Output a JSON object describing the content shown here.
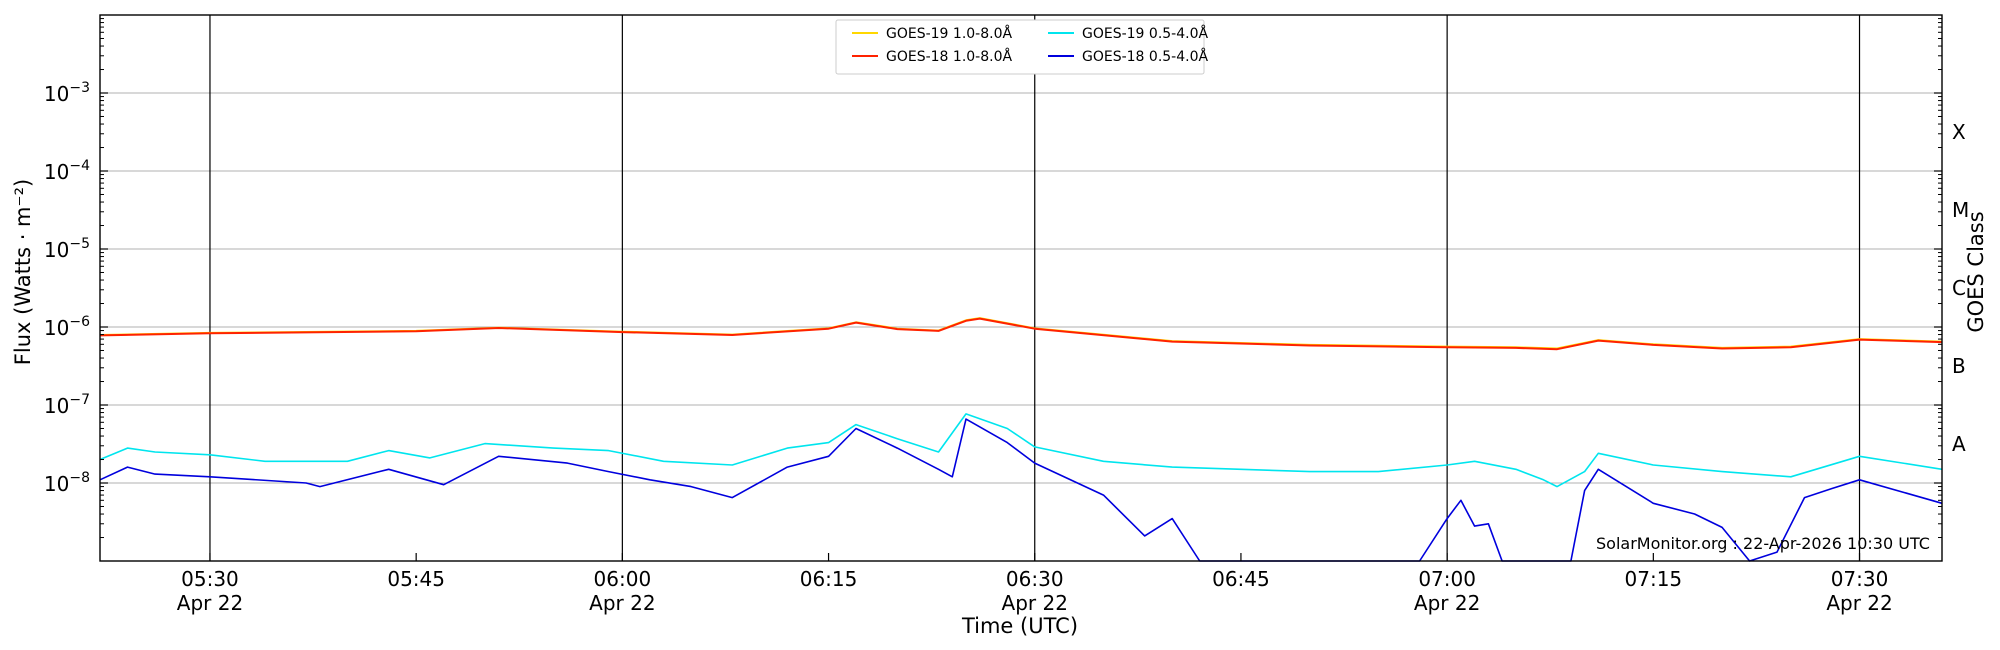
{
  "chart_data": {
    "type": "line",
    "title": "",
    "xlabel": "Time (UTC)",
    "ylabel": "Flux (Watts · m⁻²)",
    "ylabel_right": "GOES Class",
    "y_scale": "log",
    "ylim": [
      1e-09,
      0.01
    ],
    "xlim": [
      "05:22",
      "07:36"
    ],
    "grid": {
      "horizontal": true,
      "vertical_at_major_ticks": true
    },
    "legend_position": "top-center",
    "x_ticks": [
      {
        "time": "05:30",
        "label": "05:30",
        "sublabel": "Apr 22",
        "gridline": true
      },
      {
        "time": "05:45",
        "label": "05:45",
        "sublabel": "",
        "gridline": false
      },
      {
        "time": "06:00",
        "label": "06:00",
        "sublabel": "Apr 22",
        "gridline": true
      },
      {
        "time": "06:15",
        "label": "06:15",
        "sublabel": "",
        "gridline": false
      },
      {
        "time": "06:30",
        "label": "06:30",
        "sublabel": "Apr 22",
        "gridline": true
      },
      {
        "time": "06:45",
        "label": "06:45",
        "sublabel": "",
        "gridline": false
      },
      {
        "time": "07:00",
        "label": "07:00",
        "sublabel": "Apr 22",
        "gridline": true
      },
      {
        "time": "07:15",
        "label": "07:15",
        "sublabel": "",
        "gridline": false
      },
      {
        "time": "07:30",
        "label": "07:30",
        "sublabel": "Apr 22",
        "gridline": true
      }
    ],
    "y_ticks": [
      {
        "exp": -8,
        "label": "10"
      },
      {
        "exp": -7,
        "label": "10"
      },
      {
        "exp": -6,
        "label": "10"
      },
      {
        "exp": -5,
        "label": "10"
      },
      {
        "exp": -4,
        "label": "10"
      },
      {
        "exp": -3,
        "label": "10"
      }
    ],
    "goes_classes": [
      {
        "label": "A",
        "exp": -7.5
      },
      {
        "label": "B",
        "exp": -6.5
      },
      {
        "label": "C",
        "exp": -5.5
      },
      {
        "label": "M",
        "exp": -4.5
      },
      {
        "label": "X",
        "exp": -3.5
      }
    ],
    "series": [
      {
        "name": "GOES-19 1.0-8.0Å",
        "color": "#ffd700",
        "points": [
          [
            "05:22",
            7.9e-07
          ],
          [
            "05:30",
            8.4e-07
          ],
          [
            "05:45",
            8.9e-07
          ],
          [
            "05:51",
            9.8e-07
          ],
          [
            "06:00",
            8.7e-07
          ],
          [
            "06:08",
            8e-07
          ],
          [
            "06:15",
            9.6e-07
          ],
          [
            "06:17",
            1.15e-06
          ],
          [
            "06:20",
            9.5e-07
          ],
          [
            "06:23",
            9e-07
          ],
          [
            "06:25",
            1.22e-06
          ],
          [
            "06:26",
            1.3e-06
          ],
          [
            "06:30",
            9.6e-07
          ],
          [
            "06:40",
            6.6e-07
          ],
          [
            "06:50",
            5.9e-07
          ],
          [
            "07:00",
            5.6e-07
          ],
          [
            "07:05",
            5.5e-07
          ],
          [
            "07:08",
            5.3e-07
          ],
          [
            "07:11",
            6.8e-07
          ],
          [
            "07:15",
            6e-07
          ],
          [
            "07:20",
            5.4e-07
          ],
          [
            "07:25",
            5.6e-07
          ],
          [
            "07:30",
            7e-07
          ],
          [
            "07:36",
            6.5e-07
          ]
        ]
      },
      {
        "name": "GOES-18 1.0-8.0Å",
        "color": "#ff2200",
        "points": [
          [
            "05:22",
            7.8e-07
          ],
          [
            "05:30",
            8.3e-07
          ],
          [
            "05:45",
            8.8e-07
          ],
          [
            "05:51",
            9.7e-07
          ],
          [
            "06:00",
            8.6e-07
          ],
          [
            "06:08",
            7.9e-07
          ],
          [
            "06:15",
            9.5e-07
          ],
          [
            "06:17",
            1.14e-06
          ],
          [
            "06:20",
            9.4e-07
          ],
          [
            "06:23",
            8.9e-07
          ],
          [
            "06:25",
            1.2e-06
          ],
          [
            "06:26",
            1.28e-06
          ],
          [
            "06:30",
            9.5e-07
          ],
          [
            "06:40",
            6.5e-07
          ],
          [
            "06:50",
            5.8e-07
          ],
          [
            "07:00",
            5.5e-07
          ],
          [
            "07:05",
            5.4e-07
          ],
          [
            "07:08",
            5.2e-07
          ],
          [
            "07:11",
            6.7e-07
          ],
          [
            "07:15",
            5.9e-07
          ],
          [
            "07:20",
            5.3e-07
          ],
          [
            "07:25",
            5.5e-07
          ],
          [
            "07:30",
            6.9e-07
          ],
          [
            "07:36",
            6.4e-07
          ]
        ]
      },
      {
        "name": "GOES-19 0.5-4.0Å",
        "color": "#00e5ee",
        "points": [
          [
            "05:22",
            2e-08
          ],
          [
            "05:24",
            2.8e-08
          ],
          [
            "05:26",
            2.5e-08
          ],
          [
            "05:30",
            2.3e-08
          ],
          [
            "05:34",
            1.9e-08
          ],
          [
            "05:40",
            1.9e-08
          ],
          [
            "05:43",
            2.6e-08
          ],
          [
            "05:46",
            2.1e-08
          ],
          [
            "05:50",
            3.2e-08
          ],
          [
            "05:55",
            2.8e-08
          ],
          [
            "05:59",
            2.6e-08
          ],
          [
            "06:03",
            1.9e-08
          ],
          [
            "06:08",
            1.7e-08
          ],
          [
            "06:12",
            2.8e-08
          ],
          [
            "06:15",
            3.3e-08
          ],
          [
            "06:17",
            5.6e-08
          ],
          [
            "06:20",
            3.7e-08
          ],
          [
            "06:23",
            2.5e-08
          ],
          [
            "06:25",
            7.7e-08
          ],
          [
            "06:28",
            5e-08
          ],
          [
            "06:30",
            2.9e-08
          ],
          [
            "06:35",
            1.9e-08
          ],
          [
            "06:40",
            1.6e-08
          ],
          [
            "06:45",
            1.5e-08
          ],
          [
            "06:50",
            1.4e-08
          ],
          [
            "06:55",
            1.4e-08
          ],
          [
            "07:00",
            1.7e-08
          ],
          [
            "07:02",
            1.9e-08
          ],
          [
            "07:05",
            1.5e-08
          ],
          [
            "07:07",
            1.1e-08
          ],
          [
            "07:08",
            9e-09
          ],
          [
            "07:10",
            1.4e-08
          ],
          [
            "07:11",
            2.4e-08
          ],
          [
            "07:15",
            1.7e-08
          ],
          [
            "07:20",
            1.4e-08
          ],
          [
            "07:25",
            1.2e-08
          ],
          [
            "07:30",
            2.2e-08
          ],
          [
            "07:36",
            1.5e-08
          ]
        ]
      },
      {
        "name": "GOES-18 0.5-4.0Å",
        "color": "#0000dd",
        "points": [
          [
            "05:22",
            1.1e-08
          ],
          [
            "05:24",
            1.6e-08
          ],
          [
            "05:26",
            1.3e-08
          ],
          [
            "05:30",
            1.2e-08
          ],
          [
            "05:37",
            1e-08
          ],
          [
            "05:38",
            9e-09
          ],
          [
            "05:43",
            1.5e-08
          ],
          [
            "05:47",
            9.5e-09
          ],
          [
            "05:51",
            2.2e-08
          ],
          [
            "05:56",
            1.8e-08
          ],
          [
            "05:59",
            1.4e-08
          ],
          [
            "06:02",
            1.1e-08
          ],
          [
            "06:05",
            9e-09
          ],
          [
            "06:08",
            6.5e-09
          ],
          [
            "06:12",
            1.6e-08
          ],
          [
            "06:15",
            2.2e-08
          ],
          [
            "06:17",
            5e-08
          ],
          [
            "06:20",
            2.8e-08
          ],
          [
            "06:23",
            1.5e-08
          ],
          [
            "06:24",
            1.2e-08
          ],
          [
            "06:25",
            6.6e-08
          ],
          [
            "06:28",
            3.3e-08
          ],
          [
            "06:30",
            1.8e-08
          ],
          [
            "06:35",
            7e-09
          ],
          [
            "06:38",
            2.1e-09
          ],
          [
            "06:40",
            3.5e-09
          ],
          [
            "06:42",
            1e-09
          ],
          [
            "06:44",
            1e-09
          ],
          [
            "06:58",
            1e-09
          ],
          [
            "07:00",
            3.5e-09
          ],
          [
            "07:01",
            6e-09
          ],
          [
            "07:02",
            2.8e-09
          ],
          [
            "07:03",
            3e-09
          ],
          [
            "07:04",
            1e-09
          ],
          [
            "07:09",
            1e-09
          ],
          [
            "07:10",
            8e-09
          ],
          [
            "07:11",
            1.5e-08
          ],
          [
            "07:15",
            5.5e-09
          ],
          [
            "07:18",
            4e-09
          ],
          [
            "07:20",
            2.7e-09
          ],
          [
            "07:22",
            1e-09
          ],
          [
            "07:24",
            1.3e-09
          ],
          [
            "07:26",
            6.5e-09
          ],
          [
            "07:28",
            8.5e-09
          ],
          [
            "07:30",
            1.1e-08
          ],
          [
            "07:36",
            5.5e-09
          ]
        ]
      }
    ],
    "legend_layout": [
      [
        0,
        1
      ],
      [
        2,
        3
      ]
    ],
    "annotation": "SolarMonitor.org : 22-Apr-2026 10:30 UTC"
  }
}
